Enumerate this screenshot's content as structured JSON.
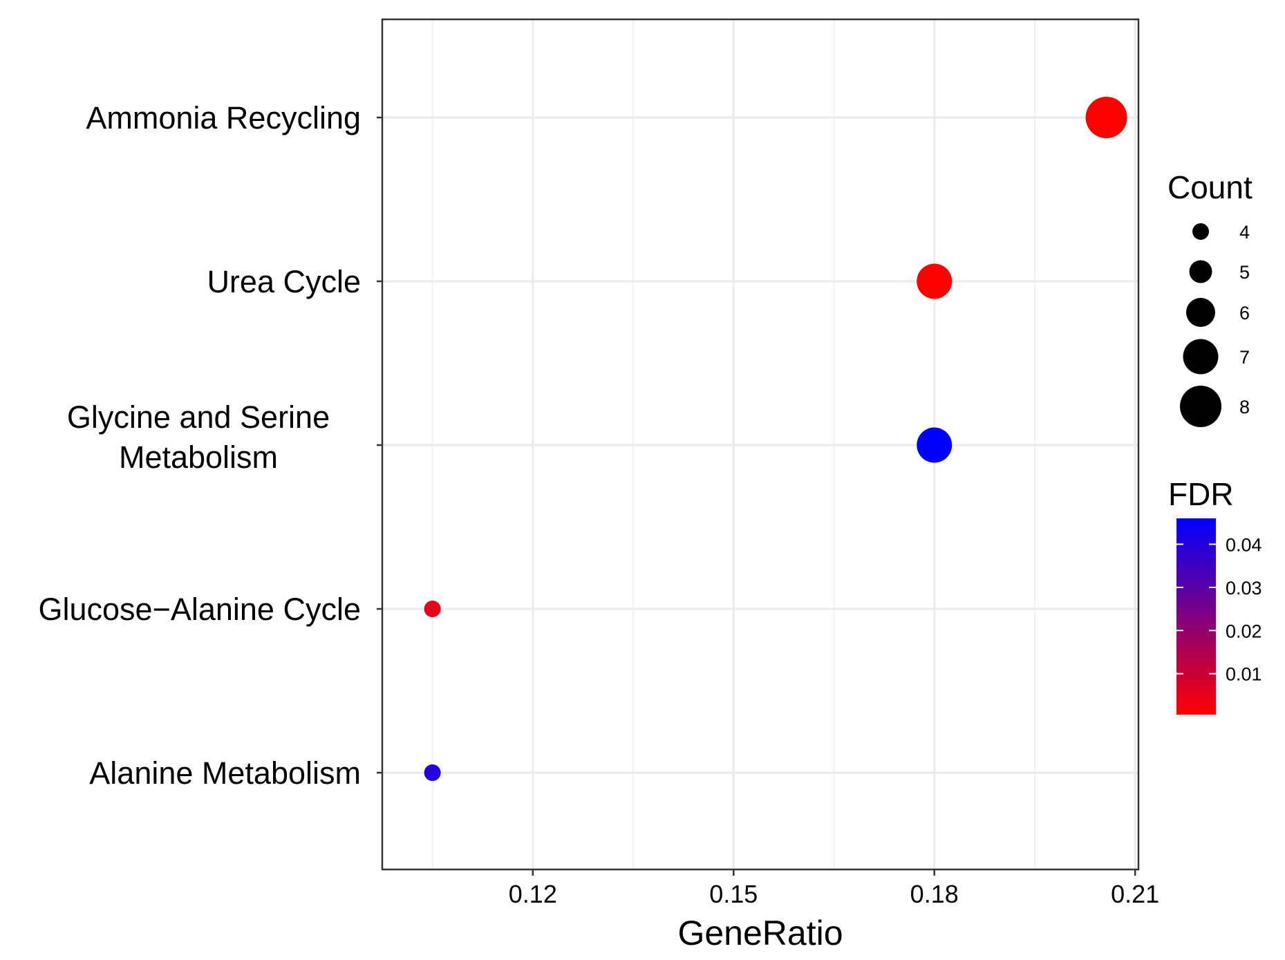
{
  "chart_data": {
    "type": "scatter",
    "subtype": "dot-plot",
    "title": "",
    "xlabel": "GeneRatio",
    "ylabel": "",
    "xlim": [
      0.0975,
      0.2105
    ],
    "x_ticks": [
      0.12,
      0.15,
      0.18,
      0.21
    ],
    "x_tick_labels": [
      "0.12",
      "0.15",
      "0.18",
      "0.21"
    ],
    "grid": true,
    "categories": [
      {
        "label": "Ammonia Recycling",
        "lines": [
          "Ammonia Recycling"
        ]
      },
      {
        "label": "Urea Cycle",
        "lines": [
          "Urea Cycle"
        ]
      },
      {
        "label": "Glycine and Serine Metabolism",
        "lines": [
          "Glycine and Serine",
          "Metabolism"
        ]
      },
      {
        "label": "Glucose−Alanine Cycle",
        "lines": [
          "Glucose−Alanine Cycle"
        ]
      },
      {
        "label": "Alanine Metabolism",
        "lines": [
          "Alanine Metabolism"
        ]
      }
    ],
    "points": [
      {
        "category": "Ammonia Recycling",
        "gene_ratio": 0.2057,
        "count": 8,
        "fdr": 0.0005
      },
      {
        "category": "Urea Cycle",
        "gene_ratio": 0.18,
        "count": 7,
        "fdr": 0.0005
      },
      {
        "category": "Glycine and Serine Metabolism",
        "gene_ratio": 0.18,
        "count": 7,
        "fdr": 0.046
      },
      {
        "category": "Glucose−Alanine Cycle",
        "gene_ratio": 0.105,
        "count": 4,
        "fdr": 0.005
      },
      {
        "category": "Alanine Metabolism",
        "gene_ratio": 0.105,
        "count": 4,
        "fdr": 0.04
      }
    ],
    "size_legend": {
      "title": "Count",
      "values": [
        4,
        5,
        6,
        7,
        8
      ]
    },
    "color_legend": {
      "title": "FDR",
      "range": [
        0.0005,
        0.046
      ],
      "low_color": "#ff0000",
      "high_color": "#0000ff",
      "ticks": [
        0.01,
        0.02,
        0.03,
        0.04
      ],
      "tick_labels": [
        "0.01",
        "0.02",
        "0.03",
        "0.04"
      ]
    }
  }
}
